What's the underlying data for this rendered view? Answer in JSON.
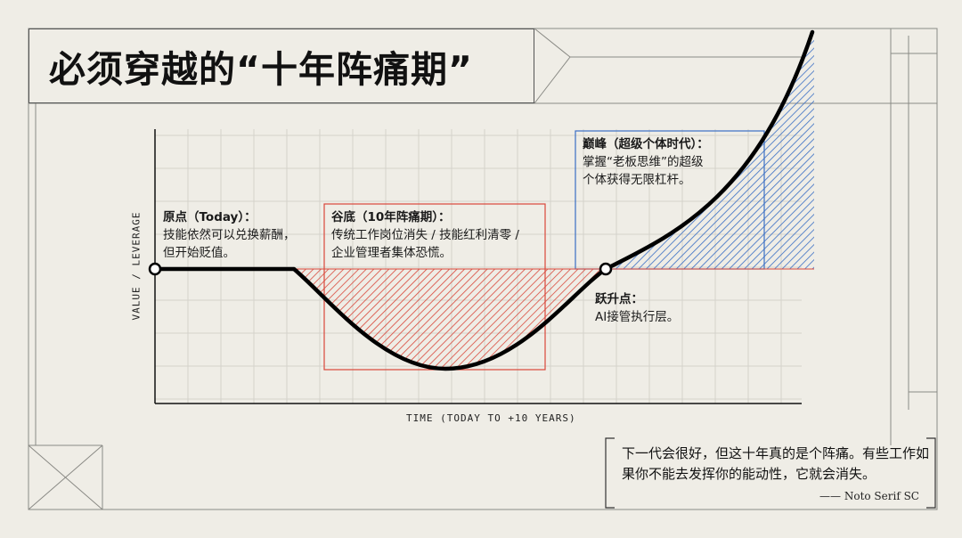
{
  "title": "必须穿越的“十年阵痛期”",
  "axes": {
    "ylabel": "VALUE / LEVERAGE",
    "xlabel": "TIME (TODAY TO +10 YEARS)"
  },
  "annotations": {
    "origin": {
      "heading": "原点（Today）：",
      "lines": [
        "技能依然可以兑换薪酬，",
        "但开始贬值。"
      ]
    },
    "valley": {
      "heading": "谷底（10年阵痛期）：",
      "lines": [
        "传统工作岗位消失 / 技能红利清零 /",
        "企业管理者集体恐慌。"
      ]
    },
    "takeoff": {
      "heading": "跃升点：",
      "lines": [
        "AI接管执行层。"
      ]
    },
    "peak": {
      "heading": "巅峰（超级个体时代）：",
      "lines": [
        "掌握“老板思维”的超级",
        "个体获得无限杠杆。"
      ]
    }
  },
  "quote": {
    "text": "下一代会很好，但这十年真的是个阵痛。有些工作如果你不能去发挥你的能动性，它就会消失。",
    "cite": "—— Noto Serif SC"
  },
  "colors": {
    "background": "#efede6",
    "curve": "#000000",
    "pain_fill": "#d9473a",
    "gain_fill": "#3a6fc4",
    "valley_box": "#d9473a",
    "peak_box": "#3a6fc4",
    "grid": "#d4d2cb"
  }
}
